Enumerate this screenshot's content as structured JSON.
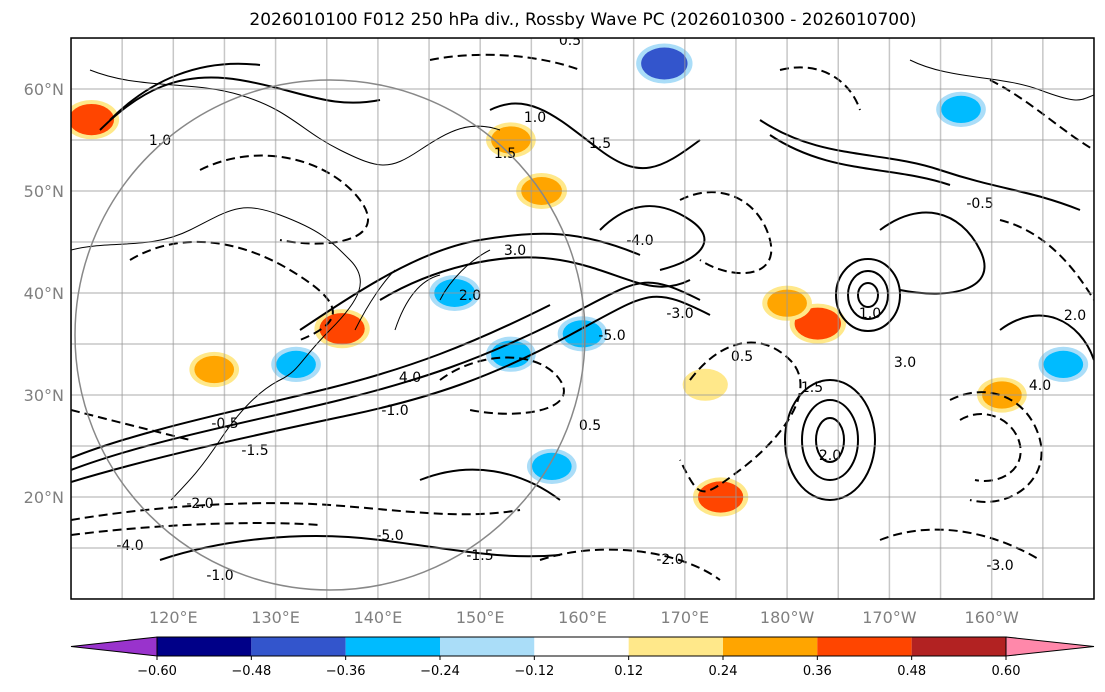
{
  "chart_data": {
    "type": "heatmap",
    "title": "2026010100 F012 250 hPa div., Rossby Wave PC (2026010300 - 2026010700)",
    "lat_ticks": [
      {
        "value": 20,
        "label": "20°N"
      },
      {
        "value": 30,
        "label": "30°N"
      },
      {
        "value": 40,
        "label": "40°N"
      },
      {
        "value": 50,
        "label": "50°N"
      },
      {
        "value": 60,
        "label": "60°N"
      }
    ],
    "lon_ticks": [
      {
        "value": 120,
        "label": "120°E"
      },
      {
        "value": 130,
        "label": "130°E"
      },
      {
        "value": 140,
        "label": "140°E"
      },
      {
        "value": 150,
        "label": "150°E"
      },
      {
        "value": 160,
        "label": "160°E"
      },
      {
        "value": 170,
        "label": "170°E"
      },
      {
        "value": 180,
        "label": "180°W"
      },
      {
        "value": 190,
        "label": "170°W"
      },
      {
        "value": 200,
        "label": "160°W"
      }
    ],
    "xlim": [
      110,
      210
    ],
    "ylim": [
      10,
      65
    ],
    "colorbar": {
      "bounds": [
        -0.6,
        -0.48,
        -0.36,
        -0.24,
        -0.12,
        0.12,
        0.24,
        0.36,
        0.48,
        0.6
      ],
      "tick_labels": [
        "−0.60",
        "−0.48",
        "−0.36",
        "−0.24",
        "−0.12",
        "0.12",
        "0.24",
        "0.36",
        "0.48",
        "0.60"
      ],
      "colors": [
        "#9933cc",
        "#000088",
        "#3355cc",
        "#00bbff",
        "#aaddf8",
        "#ffffff",
        "#ffe88a",
        "#ffa500",
        "#ff4500",
        "#b22222",
        "#ff88aa"
      ],
      "extend": "both"
    },
    "shaded_regions": [
      {
        "lon": 112,
        "lat": 57,
        "value": 0.38
      },
      {
        "lon": 168,
        "lat": 62.5,
        "value": -0.4
      },
      {
        "lon": 136.5,
        "lat": 36.5,
        "value": 0.38
      },
      {
        "lon": 156,
        "lat": 50,
        "value": 0.3
      },
      {
        "lon": 173.5,
        "lat": 20,
        "value": 0.38
      },
      {
        "lon": 183,
        "lat": 37,
        "value": 0.4
      },
      {
        "lon": 180,
        "lat": 39,
        "value": 0.28
      },
      {
        "lon": 172,
        "lat": 31,
        "value": 0.2
      },
      {
        "lon": 153,
        "lat": 34,
        "value": -0.28
      },
      {
        "lon": 160,
        "lat": 36,
        "value": -0.28
      },
      {
        "lon": 157,
        "lat": 23,
        "value": -0.28
      },
      {
        "lon": 132,
        "lat": 33,
        "value": -0.28
      },
      {
        "lon": 147.5,
        "lat": 40,
        "value": -0.3
      },
      {
        "lon": 197,
        "lat": 58,
        "value": -0.28
      },
      {
        "lon": 207,
        "lat": 33,
        "value": -0.28
      },
      {
        "lon": 124,
        "lat": 32.5,
        "value": 0.28
      },
      {
        "lon": 153,
        "lat": 55,
        "value": 0.28
      },
      {
        "lon": 201,
        "lat": 30,
        "value": 0.28
      }
    ],
    "contour_labels": [
      "0.5",
      "1.0",
      "1.5",
      "2.0",
      "3.0",
      "4.0",
      "-0.5",
      "-1.0",
      "-1.5",
      "-2.0",
      "-3.0",
      "-4.0",
      "-5.0"
    ],
    "grid": true
  }
}
